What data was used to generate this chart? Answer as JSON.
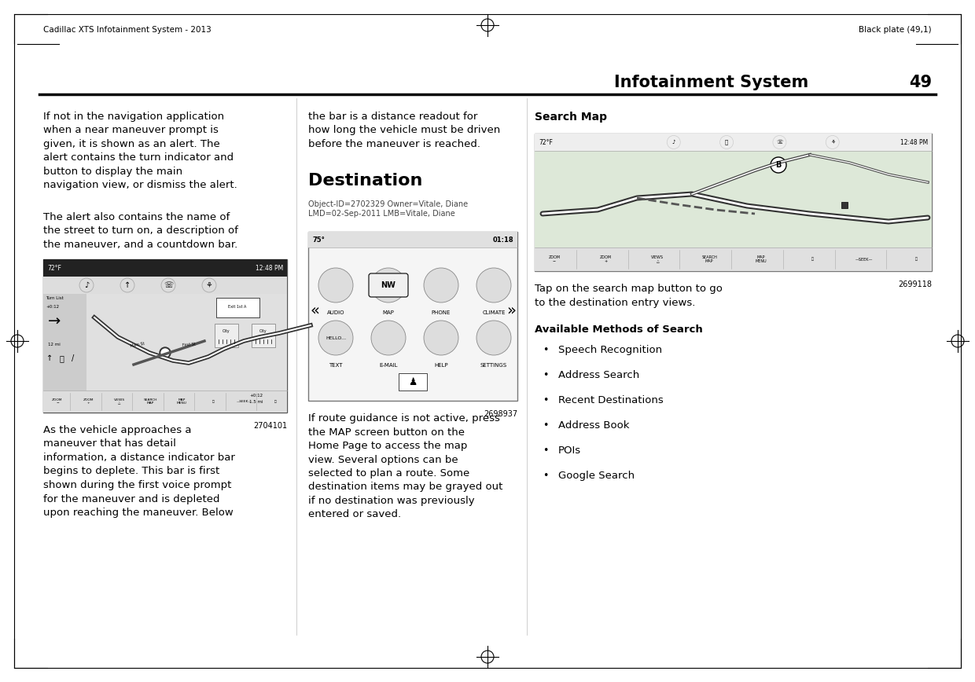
{
  "page_bg": "#ffffff",
  "header_left": "Cadillac XTS Infotainment System - 2013",
  "header_right": "Black plate (49,1)",
  "section_title": "Infotainment System",
  "page_number": "49",
  "col1_text1": "If not in the navigation application\nwhen a near maneuver prompt is\ngiven, it is shown as an alert. The\nalert contains the turn indicator and\nbutton to display the main\nnavigation view, or dismiss the alert.",
  "col1_text2": "The alert also contains the name of\nthe street to turn on, a description of\nthe maneuver, and a countdown bar.",
  "col1_fig_num": "2704101",
  "col1_bottom_text": "As the vehicle approaches a\nmaneuver that has detail\ninformation, a distance indicator bar\nbegins to deplete. This bar is first\nshown during the first voice prompt\nfor the maneuver and is depleted\nupon reaching the maneuver. Below",
  "col2_top_text": "the bar is a distance readout for\nhow long the vehicle must be driven\nbefore the maneuver is reached.",
  "destination_title": "Destination",
  "destination_meta": "Object-ID=2702329 Owner=Vitale, Diane\nLMD=02-Sep-2011 LMB=Vitale, Diane",
  "col2_fig_num": "2698937",
  "col2_bottom_text": "If route guidance is not active, press\nthe MAP screen button on the\nHome Page to access the map\nview. Several options can be\nselected to plan a route. Some\ndestination items may be grayed out\nif no destination was previously\nentered or saved.",
  "col3_search_title": "Search Map",
  "col3_fig_num": "2699118",
  "col3_tap_text": "Tap on the search map button to go\nto the destination entry views.",
  "col3_bold_label": "Available Methods of Search",
  "col3_bullets": [
    "Speech Recognition",
    "Address Search",
    "Recent Destinations",
    "Address Book",
    "POIs",
    "Google Search"
  ]
}
